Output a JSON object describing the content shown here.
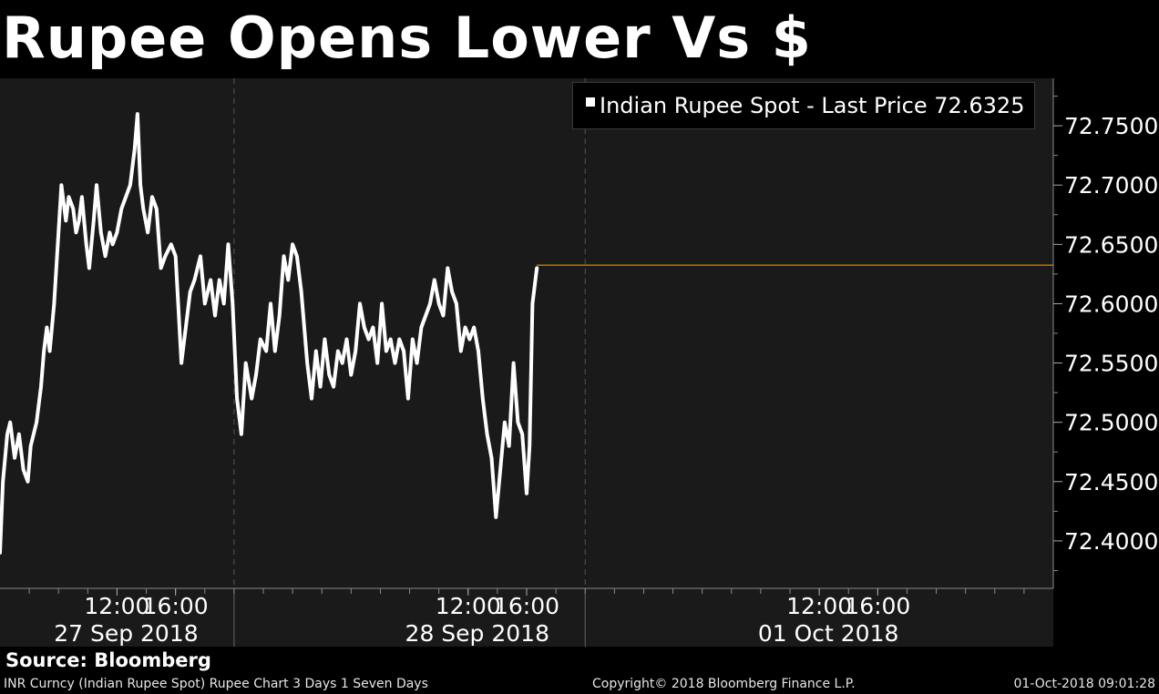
{
  "title": "Rupee Opens Lower Vs $",
  "legend": {
    "label": "Indian Rupee Spot - Last Price 72.6325",
    "swatch_color": "#ffffff"
  },
  "source": "Source: Bloomberg",
  "footer": {
    "left": "INR Curncy (Indian Rupee Spot) Rupee Chart 3 Days 1 Seven Days",
    "center": "Copyright© 2018 Bloomberg Finance L.P.",
    "right": "01-Oct-2018 09:01:28"
  },
  "colors": {
    "background": "#000000",
    "plot_background": "#1a1a1a",
    "line": "#ffffff",
    "last_price_line": "#f5a623"
  },
  "chart_data": {
    "type": "line",
    "title": "Rupee Opens Lower Vs $",
    "xlabel": "",
    "ylabel": "",
    "ylim": [
      72.36,
      72.79
    ],
    "yticks": [
      "72.4000",
      "72.4500",
      "72.5000",
      "72.5500",
      "72.6000",
      "72.6500",
      "72.7000",
      "72.7500"
    ],
    "grid": false,
    "legend_position": "top-right",
    "x_axis": {
      "range_hours": [
        0,
        72
      ],
      "time_ticks": [
        {
          "x": 8,
          "label": "12:00"
        },
        {
          "x": 12,
          "label": "16:00"
        },
        {
          "x": 32,
          "label": "12:00"
        },
        {
          "x": 36,
          "label": "16:00"
        },
        {
          "x": 56,
          "label": "12:00"
        },
        {
          "x": 60,
          "label": "16:00"
        }
      ],
      "day_separators": [
        16,
        40
      ],
      "days": [
        {
          "x": 8,
          "label": "27 Sep 2018"
        },
        {
          "x": 32,
          "label": "28 Sep 2018"
        },
        {
          "x": 56,
          "label": "01 Oct 2018"
        }
      ]
    },
    "last_price": 72.6325,
    "series": [
      {
        "name": "Indian Rupee Spot",
        "x": [
          0,
          0.2,
          0.5,
          0.7,
          1.0,
          1.3,
          1.6,
          1.9,
          2.1,
          2.5,
          2.8,
          3.0,
          3.2,
          3.4,
          3.7,
          4.0,
          4.2,
          4.5,
          4.7,
          5.0,
          5.2,
          5.4,
          5.6,
          5.9,
          6.1,
          6.4,
          6.6,
          6.9,
          7.2,
          7.5,
          7.7,
          8.0,
          8.3,
          8.6,
          8.9,
          9.2,
          9.4,
          9.6,
          9.8,
          10.1,
          10.4,
          10.7,
          11.0,
          11.3,
          11.7,
          12.0,
          12.4,
          12.7,
          13.0,
          13.3,
          13.7,
          14.0,
          14.4,
          14.7,
          15.0,
          15.3,
          15.6,
          15.9,
          16.2,
          16.5,
          16.8,
          17.2,
          17.5,
          17.8,
          18.2,
          18.5,
          18.8,
          19.1,
          19.4,
          19.7,
          20.0,
          20.3,
          20.6,
          21.0,
          21.3,
          21.6,
          21.9,
          22.2,
          22.5,
          22.8,
          23.1,
          23.4,
          23.7,
          24.0,
          24.3,
          24.6,
          24.9,
          25.2,
          25.5,
          25.8,
          26.1,
          26.4,
          26.7,
          27.0,
          27.3,
          27.6,
          27.9,
          28.2,
          28.5,
          28.8,
          29.1,
          29.4,
          29.7,
          30.0,
          30.3,
          30.6,
          30.9,
          31.2,
          31.5,
          31.8,
          32.1,
          32.4,
          32.7,
          33.0,
          33.3,
          33.6,
          33.9,
          34.2,
          34.5,
          34.8,
          35.1,
          35.4,
          35.7,
          36.0,
          36.2,
          36.4,
          36.7,
          37.0,
          37.3,
          37.6,
          37.9,
          38.2,
          38.5,
          38.8,
          39.0,
          39.3,
          39.6,
          39.8,
          40.0
        ],
        "y": [
          72.39,
          72.45,
          72.49,
          72.5,
          72.47,
          72.49,
          72.46,
          72.45,
          72.48,
          72.5,
          72.53,
          72.56,
          72.58,
          72.56,
          72.6,
          72.66,
          72.7,
          72.67,
          72.69,
          72.68,
          72.66,
          72.67,
          72.69,
          72.65,
          72.63,
          72.67,
          72.7,
          72.66,
          72.64,
          72.66,
          72.65,
          72.66,
          72.68,
          72.69,
          72.7,
          72.73,
          72.76,
          72.7,
          72.68,
          72.66,
          72.69,
          72.68,
          72.63,
          72.64,
          72.65,
          72.64,
          72.55,
          72.58,
          72.61,
          72.62,
          72.64,
          72.6,
          72.62,
          72.59,
          72.62,
          72.6,
          72.65,
          72.6,
          72.52,
          72.49,
          72.55,
          72.52,
          72.54,
          72.57,
          72.56,
          72.6,
          72.56,
          72.59,
          72.64,
          72.62,
          72.65,
          72.64,
          72.61,
          72.55,
          72.52,
          72.56,
          72.53,
          72.57,
          72.54,
          72.53,
          72.56,
          72.55,
          72.57,
          72.54,
          72.56,
          72.6,
          72.58,
          72.57,
          72.58,
          72.55,
          72.6,
          72.56,
          72.57,
          72.55,
          72.57,
          72.56,
          72.52,
          72.57,
          72.55,
          72.58,
          72.59,
          72.6,
          72.62,
          72.6,
          72.59,
          72.63,
          72.61,
          72.6,
          72.56,
          72.58,
          72.57,
          72.58,
          72.56,
          72.52,
          72.49,
          72.47,
          72.42,
          72.46,
          72.5,
          72.48,
          72.55,
          72.5,
          72.49,
          72.44,
          72.48,
          72.6,
          72.63,
          72.63,
          72.63,
          72.63,
          72.63,
          72.63,
          72.63,
          72.63,
          72.63,
          72.63,
          72.63,
          72.63,
          72.6325
        ]
      }
    ]
  }
}
